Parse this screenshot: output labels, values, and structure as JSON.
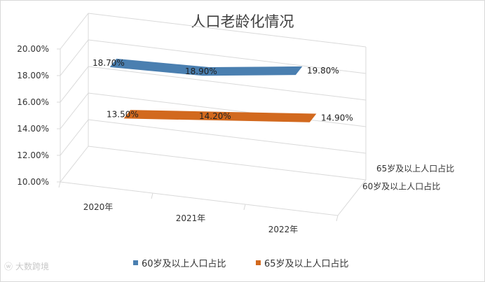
{
  "chart_data": {
    "type": "line",
    "style": "3d-ribbon",
    "title": "人口老龄化情况",
    "categories": [
      "2020年",
      "2021年",
      "2022年"
    ],
    "series": [
      {
        "name": "60岁及以上人口占比",
        "values": [
          18.7,
          18.9,
          19.8
        ],
        "labels": [
          "18.70%",
          "18.90%",
          "19.80%"
        ],
        "color": "#4a7fb0"
      },
      {
        "name": "65岁及以上人口占比",
        "values": [
          13.5,
          14.2,
          14.9
        ],
        "labels": [
          "13.50%",
          "14.20%",
          "14.90%"
        ],
        "color": "#d2691e"
      }
    ],
    "depth_axis_labels": [
      "65岁及以上人口占比",
      "60岁及以上人口占比"
    ],
    "yticks": [
      "10.00%",
      "12.00%",
      "14.00%",
      "16.00%",
      "18.00%",
      "20.00%"
    ],
    "ylim": [
      10,
      20
    ],
    "grid": true,
    "legend": "bottom"
  },
  "watermark": "大数跨境"
}
